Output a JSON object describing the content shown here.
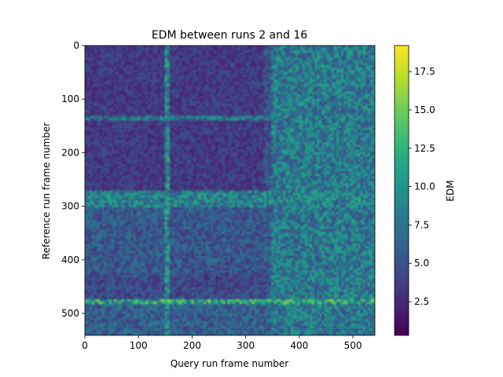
{
  "chart_data": {
    "type": "heatmap",
    "title": "EDM between runs 2 and 16",
    "xlabel": "Query run frame number",
    "ylabel": "Reference run frame number",
    "xlim": [
      0,
      541
    ],
    "ylim": [
      541,
      0
    ],
    "x_ticks": [
      0,
      100,
      200,
      300,
      400,
      500
    ],
    "y_ticks": [
      0,
      100,
      200,
      300,
      400,
      500
    ],
    "colorbar": {
      "label": "EDM",
      "range": [
        0.3,
        19.2
      ],
      "ticks": [
        2.5,
        5.0,
        7.5,
        10.0,
        12.5,
        15.0,
        17.5
      ],
      "colormap": "viridis"
    },
    "grid": false,
    "legend": "none",
    "matrix_size": [
      541,
      541
    ],
    "row_bands": [
      {
        "from": 0,
        "to": 270,
        "level": 1.5
      },
      {
        "from": 128,
        "to": 138,
        "level": 7.5
      },
      {
        "from": 270,
        "to": 300,
        "level": 8.5
      },
      {
        "from": 300,
        "to": 420,
        "level": 5.5
      },
      {
        "from": 420,
        "to": 480,
        "level": 4.5
      },
      {
        "from": 470,
        "to": 482,
        "level": 11
      },
      {
        "from": 480,
        "to": 541,
        "level": 6
      }
    ],
    "column_bands": [
      {
        "from": 0,
        "to": 330,
        "level": 3.5
      },
      {
        "from": 148,
        "to": 155,
        "level": 9
      },
      {
        "from": 330,
        "to": 345,
        "level": 5
      },
      {
        "from": 345,
        "to": 541,
        "level": 8
      }
    ]
  }
}
